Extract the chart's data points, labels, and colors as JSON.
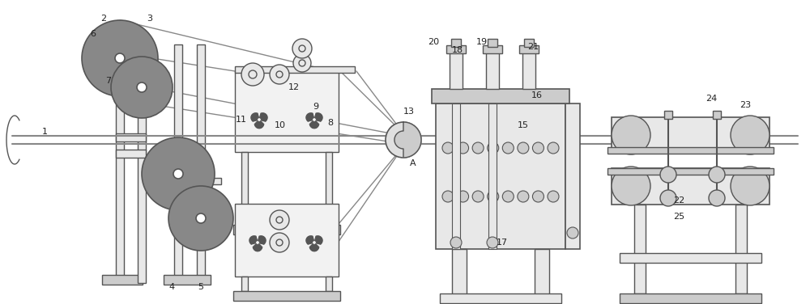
{
  "figsize": [
    10.0,
    3.76
  ],
  "dpi": 100,
  "bg_color": "#ffffff",
  "lc": "#555555",
  "dc": "#333333",
  "gray1": "#aaaaaa",
  "gray2": "#cccccc",
  "gray3": "#e8e8e8",
  "gray4": "#f2f2f2",
  "lw": 1.0
}
